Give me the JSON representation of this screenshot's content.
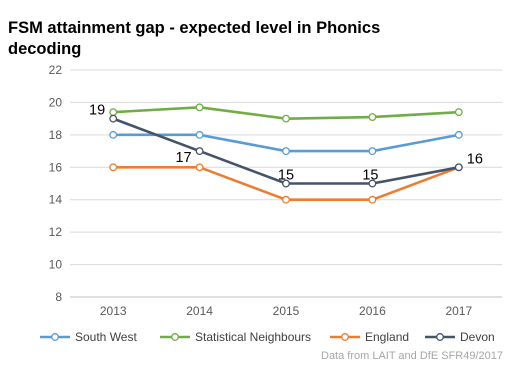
{
  "chart_data": {
    "type": "line",
    "title": "FSM attainment gap - expected level in Phonics decoding",
    "categories": [
      "2013",
      "2014",
      "2015",
      "2016",
      "2017"
    ],
    "ylim": [
      8,
      22
    ],
    "yticks": [
      8,
      10,
      12,
      14,
      16,
      18,
      20,
      22
    ],
    "ytick_labels": [
      "8",
      "10",
      "12",
      "14",
      "16",
      "18",
      "20",
      "22"
    ],
    "grid": true,
    "legend_position": "bottom",
    "series": [
      {
        "name": "South West",
        "color": "#5b9bd5",
        "values": [
          18,
          18,
          17,
          17,
          18
        ]
      },
      {
        "name": "Statistical Neighbours",
        "color": "#70ad47",
        "values": [
          19.4,
          19.7,
          19,
          19.1,
          19.4
        ]
      },
      {
        "name": "England",
        "color": "#ed7d31",
        "values": [
          16,
          16,
          14,
          14,
          16
        ]
      },
      {
        "name": "Devon",
        "color": "#44546a",
        "values": [
          19,
          17,
          15,
          15,
          16
        ]
      }
    ],
    "data_labels": [
      {
        "series": "Devon",
        "category": "2013",
        "text": "19"
      },
      {
        "series": "Devon",
        "category": "2014",
        "text": "17"
      },
      {
        "series": "Devon",
        "category": "2015",
        "text": "15"
      },
      {
        "series": "Devon",
        "category": "2016",
        "text": "15"
      },
      {
        "series": "Devon",
        "category": "2017",
        "text": "16"
      }
    ],
    "source_note": "Data from LAIT and DfE SFR49/2017"
  }
}
